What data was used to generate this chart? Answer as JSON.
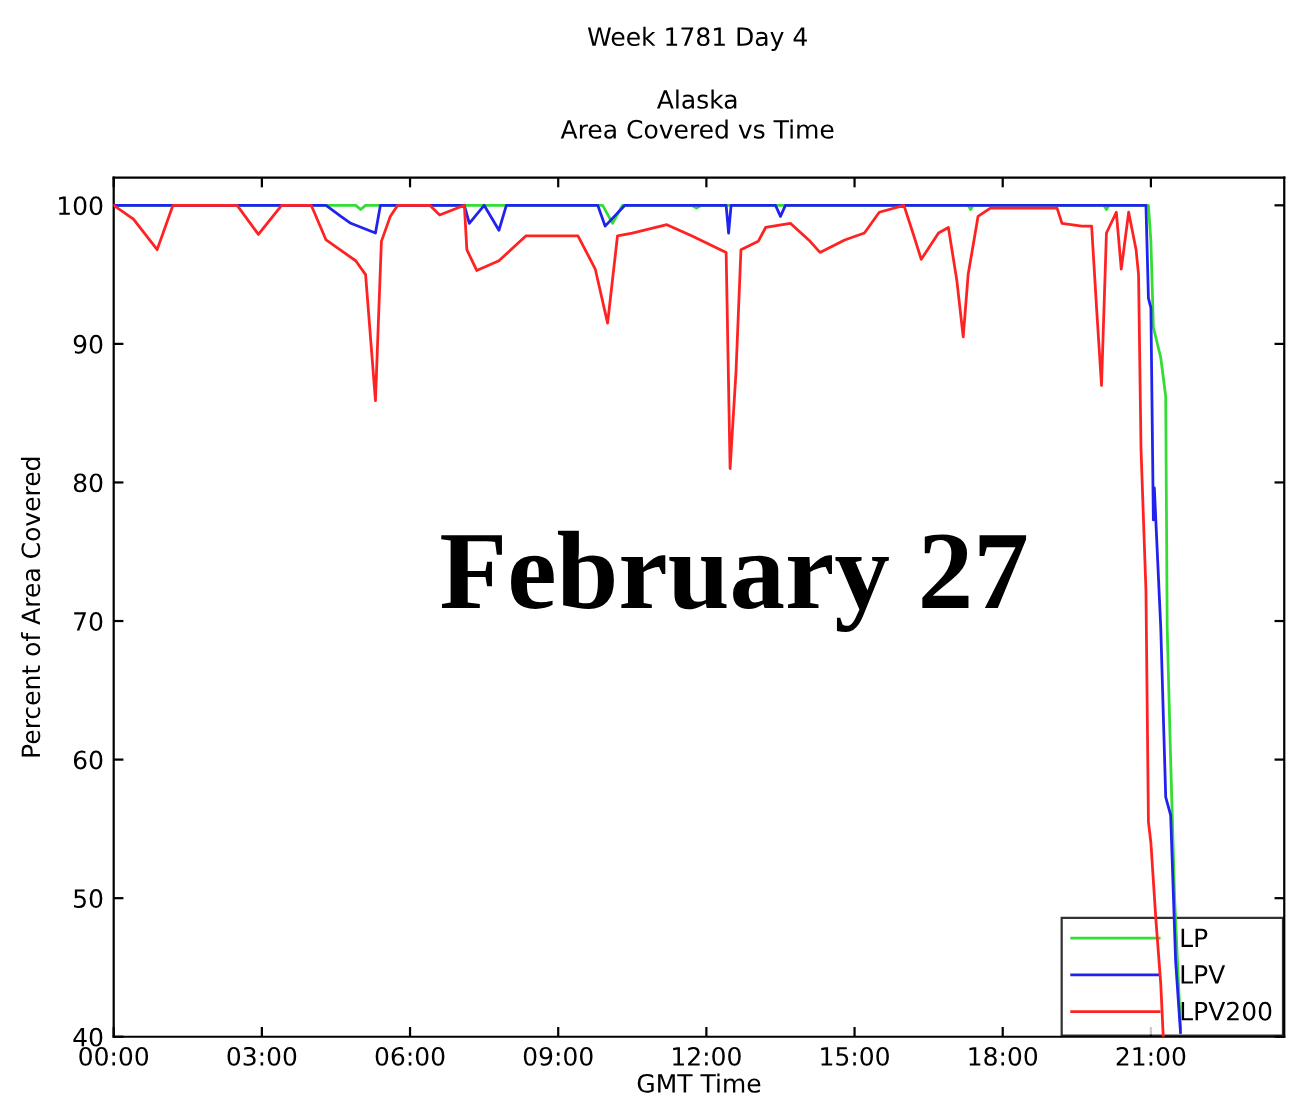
{
  "chart_data": {
    "type": "line",
    "title": "Week 1781 Day 4",
    "subtitle": "Alaska\nArea Covered vs Time",
    "xlabel": "GMT Time",
    "ylabel": "Percent of Area Covered",
    "annotations": [
      "February 27"
    ],
    "xlim": [
      0,
      23.7
    ],
    "xticks": [
      {
        "value": 0,
        "label": "00:00"
      },
      {
        "value": 3,
        "label": "03:00"
      },
      {
        "value": 6,
        "label": "06:00"
      },
      {
        "value": 9,
        "label": "09:00"
      },
      {
        "value": 12,
        "label": "12:00"
      },
      {
        "value": 15,
        "label": "15:00"
      },
      {
        "value": 18,
        "label": "18:00"
      },
      {
        "value": 21,
        "label": "21:00"
      }
    ],
    "ylim": [
      40,
      102
    ],
    "yticks": [
      40,
      50,
      60,
      70,
      80,
      90,
      100
    ],
    "grid": false,
    "legend": "bottom right",
    "marker": "none",
    "line_style": "solid",
    "series": [
      {
        "name": "LP",
        "color": "#33dd33",
        "x": [
          0,
          4.9,
          5.0,
          5.1,
          9.9,
          10.1,
          10.3,
          11.7,
          11.8,
          11.9,
          17.3,
          17.35,
          17.4,
          20.05,
          20.1,
          20.15,
          20.95,
          21.0,
          21.05,
          21.2,
          21.3,
          21.33,
          21.4,
          21.48,
          21.6
        ],
        "values": [
          100,
          100,
          99.7,
          100,
          100,
          98.7,
          100,
          100,
          99.8,
          100,
          100,
          99.7,
          100,
          100,
          99.7,
          100,
          100,
          97.4,
          91.2,
          89,
          86.2,
          69.5,
          60,
          50,
          40.6
        ]
      },
      {
        "name": "LPV",
        "color": "#2222ee",
        "x": [
          0,
          4.3,
          4.6,
          4.8,
          5.3,
          5.4,
          7.1,
          7.2,
          7.5,
          7.8,
          7.95,
          9.8,
          9.95,
          10.35,
          12.4,
          12.45,
          12.5,
          13.4,
          13.5,
          13.6,
          20.9,
          20.95,
          21.0,
          21.05,
          21.07,
          21.2,
          21.3,
          21.4,
          21.45,
          21.5,
          21.6
        ],
        "values": [
          100,
          100,
          99.2,
          98.7,
          98,
          100,
          100,
          98.7,
          100,
          98.2,
          100,
          100,
          98.5,
          100,
          100,
          98,
          100,
          100,
          99.2,
          100,
          100,
          93.3,
          92.6,
          77.3,
          79.6,
          69.5,
          57.3,
          56,
          50.8,
          45.5,
          40.3
        ]
      },
      {
        "name": "LPV200",
        "color": "#ff2222",
        "x": [
          0,
          0.4,
          0.88,
          1.2,
          2.5,
          2.93,
          3.4,
          4.0,
          4.3,
          4.9,
          5.1,
          5.3,
          5.42,
          5.6,
          5.75,
          6.4,
          6.6,
          7.1,
          7.15,
          7.35,
          7.8,
          8.35,
          9.0,
          9.4,
          9.75,
          10.0,
          10.2,
          10.5,
          11.2,
          11.7,
          12.4,
          12.48,
          12.6,
          12.7,
          13.05,
          13.2,
          13.7,
          14.1,
          14.3,
          14.8,
          15.2,
          15.5,
          16.0,
          16.2,
          16.35,
          16.7,
          16.9,
          17.07,
          17.2,
          17.3,
          17.5,
          17.75,
          19.1,
          19.2,
          19.6,
          19.8,
          19.9,
          20.0,
          20.1,
          20.3,
          20.4,
          20.55,
          20.7,
          20.75,
          20.8,
          20.9,
          20.95,
          21.0,
          21.1,
          21.2,
          21.25
        ],
        "values": [
          100,
          99,
          96.8,
          100,
          100,
          97.9,
          100,
          100,
          97.5,
          96,
          95,
          85.9,
          97.4,
          99.2,
          100,
          100,
          99.3,
          100,
          96.8,
          95.3,
          96,
          97.8,
          97.8,
          97.8,
          95.4,
          91.5,
          97.8,
          98,
          98.6,
          97.8,
          96.6,
          81,
          88,
          96.8,
          97.4,
          98.4,
          98.7,
          97.4,
          96.6,
          97.5,
          98,
          99.5,
          100,
          97.8,
          96.1,
          98,
          98.4,
          94.6,
          90.5,
          95,
          99.2,
          99.8,
          99.8,
          98.7,
          98.5,
          98.5,
          92.6,
          87,
          98,
          99.5,
          95.4,
          99.5,
          96.8,
          95,
          82.4,
          72.2,
          55.5,
          54,
          48.5,
          43.8,
          40
        ]
      }
    ]
  }
}
